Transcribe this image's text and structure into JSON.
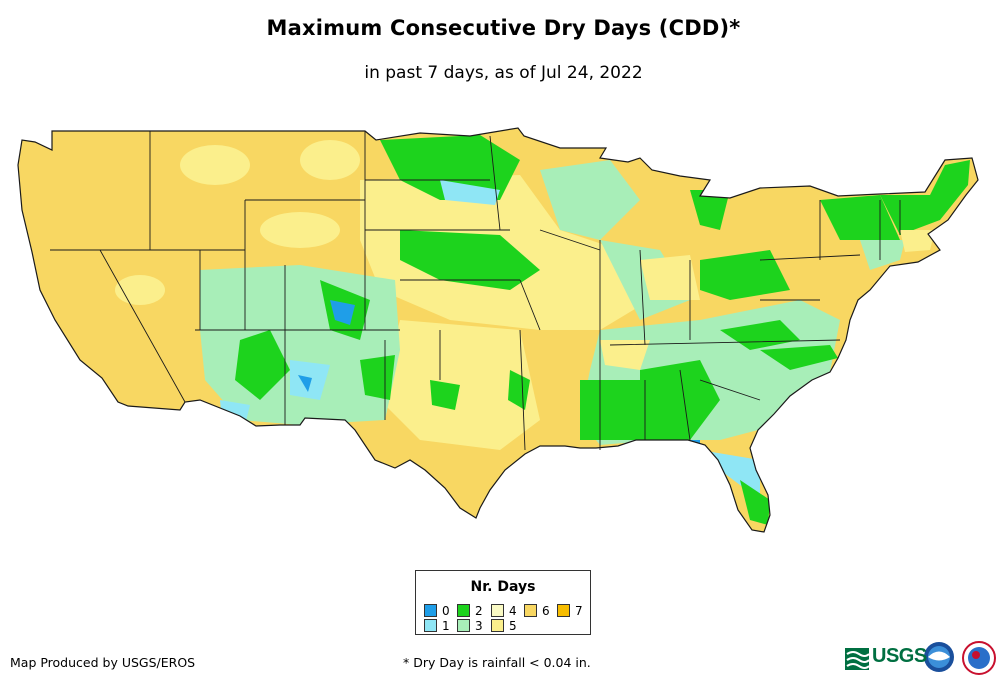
{
  "header": {
    "title": "Maximum Consecutive Dry Days (CDD)*",
    "subtitle": "in past 7 days, as of Jul 24, 2022"
  },
  "legend": {
    "title": "Nr. Days",
    "items": [
      {
        "label": "0",
        "color": "#1f9ee8"
      },
      {
        "label": "1",
        "color": "#8fe6f5"
      },
      {
        "label": "2",
        "color": "#1dd31d"
      },
      {
        "label": "3",
        "color": "#a8eeb8"
      },
      {
        "label": "4",
        "color": "#fafac4"
      },
      {
        "label": "5",
        "color": "#fbef8c"
      },
      {
        "label": "6",
        "color": "#f8d762"
      },
      {
        "label": "7",
        "color": "#f7bd00"
      }
    ]
  },
  "footer": {
    "producer": "Map Produced by USGS/EROS",
    "footnote": "* Dry Day is rainfall < 0.04 in.",
    "logo_text": "USGS"
  }
}
